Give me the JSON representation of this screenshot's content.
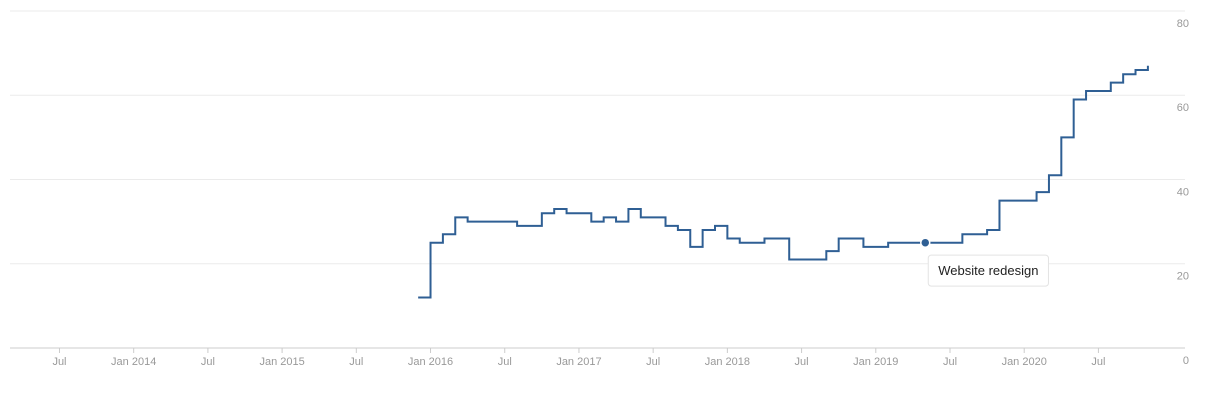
{
  "chart_data": {
    "type": "step-line",
    "x": [
      "2015-12",
      "2016-01",
      "2016-02",
      "2016-03",
      "2016-04",
      "2016-08",
      "2016-10",
      "2016-11",
      "2016-12",
      "2017-02",
      "2017-03",
      "2017-04",
      "2017-05",
      "2017-06",
      "2017-08",
      "2017-09",
      "2017-10",
      "2017-11",
      "2017-12",
      "2018-01",
      "2018-02",
      "2018-04",
      "2018-06",
      "2018-09",
      "2018-10",
      "2018-12",
      "2019-02",
      "2019-05",
      "2019-08",
      "2019-10",
      "2019-11",
      "2020-01",
      "2020-02",
      "2020-03",
      "2020-04",
      "2020-05",
      "2020-06",
      "2020-08",
      "2020-09",
      "2020-10",
      "2020-11"
    ],
    "series": [
      {
        "color": "#2f5f94",
        "values": [
          12,
          25,
          27,
          31,
          30,
          29,
          32,
          33,
          32,
          30,
          31,
          30,
          33,
          31,
          29,
          28,
          24,
          28,
          29,
          26,
          25,
          26,
          21,
          23,
          26,
          24,
          25,
          25,
          27,
          28,
          35,
          35,
          37,
          41,
          50,
          59,
          61,
          63,
          65,
          66,
          67
        ]
      }
    ],
    "annotations": [
      {
        "x": "2019-05",
        "y": 25,
        "text": "Website redesign"
      }
    ],
    "xlim": [
      "2013-03",
      "2021-02"
    ],
    "xticks": [
      {
        "value": "2013-07",
        "label": "Jul"
      },
      {
        "value": "2014-01",
        "label": "Jan 2014"
      },
      {
        "value": "2014-07",
        "label": "Jul"
      },
      {
        "value": "2015-01",
        "label": "Jan 2015"
      },
      {
        "value": "2015-07",
        "label": "Jul"
      },
      {
        "value": "2016-01",
        "label": "Jan 2016"
      },
      {
        "value": "2016-07",
        "label": "Jul"
      },
      {
        "value": "2017-01",
        "label": "Jan 2017"
      },
      {
        "value": "2017-07",
        "label": "Jul"
      },
      {
        "value": "2018-01",
        "label": "Jan 2018"
      },
      {
        "value": "2018-07",
        "label": "Jul"
      },
      {
        "value": "2019-01",
        "label": "Jan 2019"
      },
      {
        "value": "2019-07",
        "label": "Jul"
      },
      {
        "value": "2020-01",
        "label": "Jan 2020"
      },
      {
        "value": "2020-07",
        "label": "Jul"
      }
    ],
    "ylim": [
      0,
      80
    ],
    "yticks": [
      0,
      20,
      40,
      60,
      80
    ],
    "grid": true
  }
}
